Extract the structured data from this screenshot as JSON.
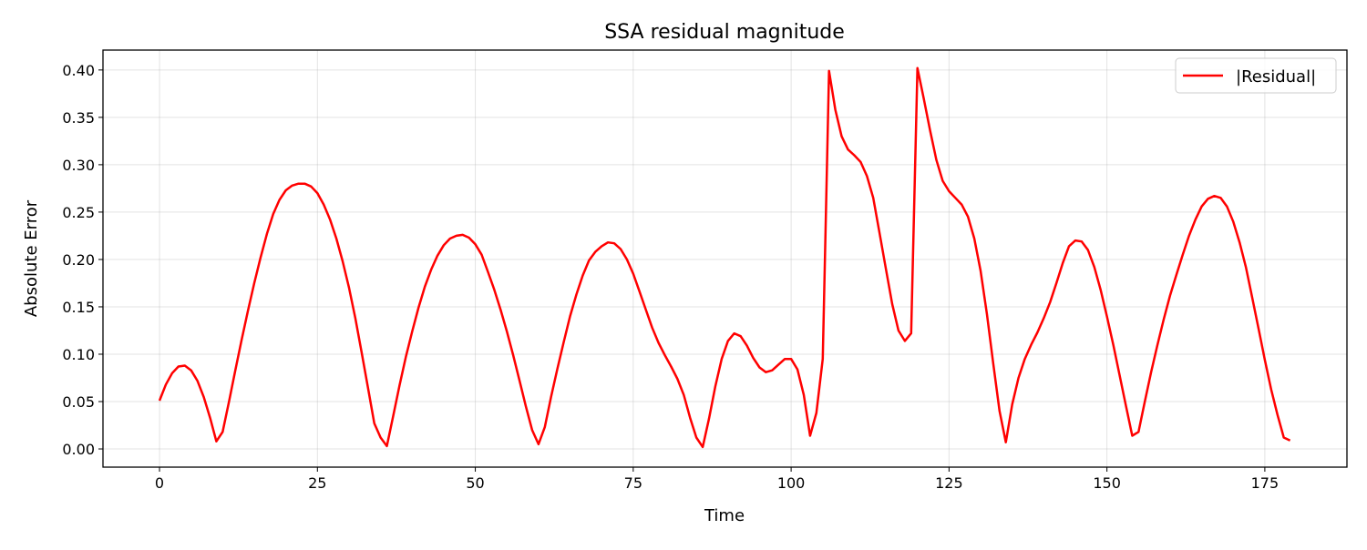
{
  "chart_data": {
    "type": "line",
    "title": "SSA residual magnitude",
    "xlabel": "Time",
    "ylabel": "Absolute Error",
    "xlim": [
      -8.95,
      188
    ],
    "ylim": [
      -0.0192,
      0.421
    ],
    "xticks": [
      0,
      25,
      50,
      75,
      100,
      125,
      150,
      175
    ],
    "yticks": [
      0.0,
      0.05,
      0.1,
      0.15,
      0.2,
      0.25,
      0.3,
      0.35,
      0.4
    ],
    "grid": true,
    "legend_position": "top-right",
    "series": [
      {
        "name": "|Residual|",
        "color": "#ff0000",
        "x_start": 0,
        "x_step": 1,
        "values": [
          0.051,
          0.068,
          0.08,
          0.087,
          0.088,
          0.083,
          0.072,
          0.055,
          0.033,
          0.008,
          0.018,
          0.05,
          0.083,
          0.115,
          0.146,
          0.175,
          0.202,
          0.227,
          0.248,
          0.263,
          0.273,
          0.278,
          0.28,
          0.28,
          0.277,
          0.27,
          0.258,
          0.242,
          0.222,
          0.198,
          0.17,
          0.138,
          0.102,
          0.065,
          0.027,
          0.012,
          0.003,
          0.035,
          0.067,
          0.097,
          0.124,
          0.149,
          0.171,
          0.189,
          0.204,
          0.215,
          0.222,
          0.225,
          0.226,
          0.223,
          0.216,
          0.205,
          0.187,
          0.168,
          0.147,
          0.124,
          0.099,
          0.072,
          0.045,
          0.02,
          0.005,
          0.023,
          0.055,
          0.085,
          0.113,
          0.14,
          0.163,
          0.183,
          0.199,
          0.208,
          0.214,
          0.218,
          0.217,
          0.211,
          0.2,
          0.185,
          0.166,
          0.147,
          0.128,
          0.112,
          0.099,
          0.087,
          0.074,
          0.057,
          0.033,
          0.012,
          0.002,
          0.032,
          0.066,
          0.095,
          0.114,
          0.122,
          0.119,
          0.109,
          0.096,
          0.086,
          0.081,
          0.083,
          0.089,
          0.095,
          0.095,
          0.084,
          0.057,
          0.014,
          0.038,
          0.095,
          0.399,
          0.358,
          0.33,
          0.316,
          0.31,
          0.303,
          0.288,
          0.265,
          0.228,
          0.19,
          0.153,
          0.125,
          0.114,
          0.122,
          0.402,
          0.37,
          0.336,
          0.305,
          0.283,
          0.272,
          0.265,
          0.258,
          0.245,
          0.222,
          0.188,
          0.142,
          0.09,
          0.04,
          0.007,
          0.047,
          0.075,
          0.095,
          0.11,
          0.123,
          0.138,
          0.155,
          0.175,
          0.196,
          0.214,
          0.22,
          0.219,
          0.21,
          0.192,
          0.168,
          0.14,
          0.11,
          0.078,
          0.046,
          0.014,
          0.018,
          0.05,
          0.081,
          0.11,
          0.137,
          0.162,
          0.184,
          0.205,
          0.225,
          0.242,
          0.256,
          0.264,
          0.267,
          0.265,
          0.256,
          0.24,
          0.218,
          0.192,
          0.16,
          0.127,
          0.094,
          0.063,
          0.036,
          0.012,
          0.009
        ]
      }
    ]
  }
}
